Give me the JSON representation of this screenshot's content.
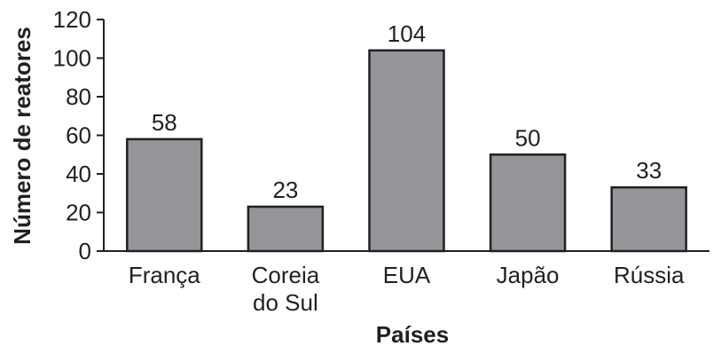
{
  "chart_data": {
    "type": "bar",
    "title": "",
    "xlabel": "Países",
    "ylabel": "Número de reatores",
    "categories": [
      [
        "França"
      ],
      [
        "Coreia",
        "do Sul"
      ],
      [
        "EUA"
      ],
      [
        "Japão"
      ],
      [
        "Rússia"
      ]
    ],
    "values": [
      58,
      23,
      104,
      50,
      33
    ],
    "ylim": [
      0,
      120
    ],
    "yticks": [
      0,
      20,
      40,
      60,
      80,
      100,
      120
    ],
    "grid": false,
    "legend": "none",
    "bar_color": "#939598",
    "bar_edge_color": "#231f20"
  }
}
